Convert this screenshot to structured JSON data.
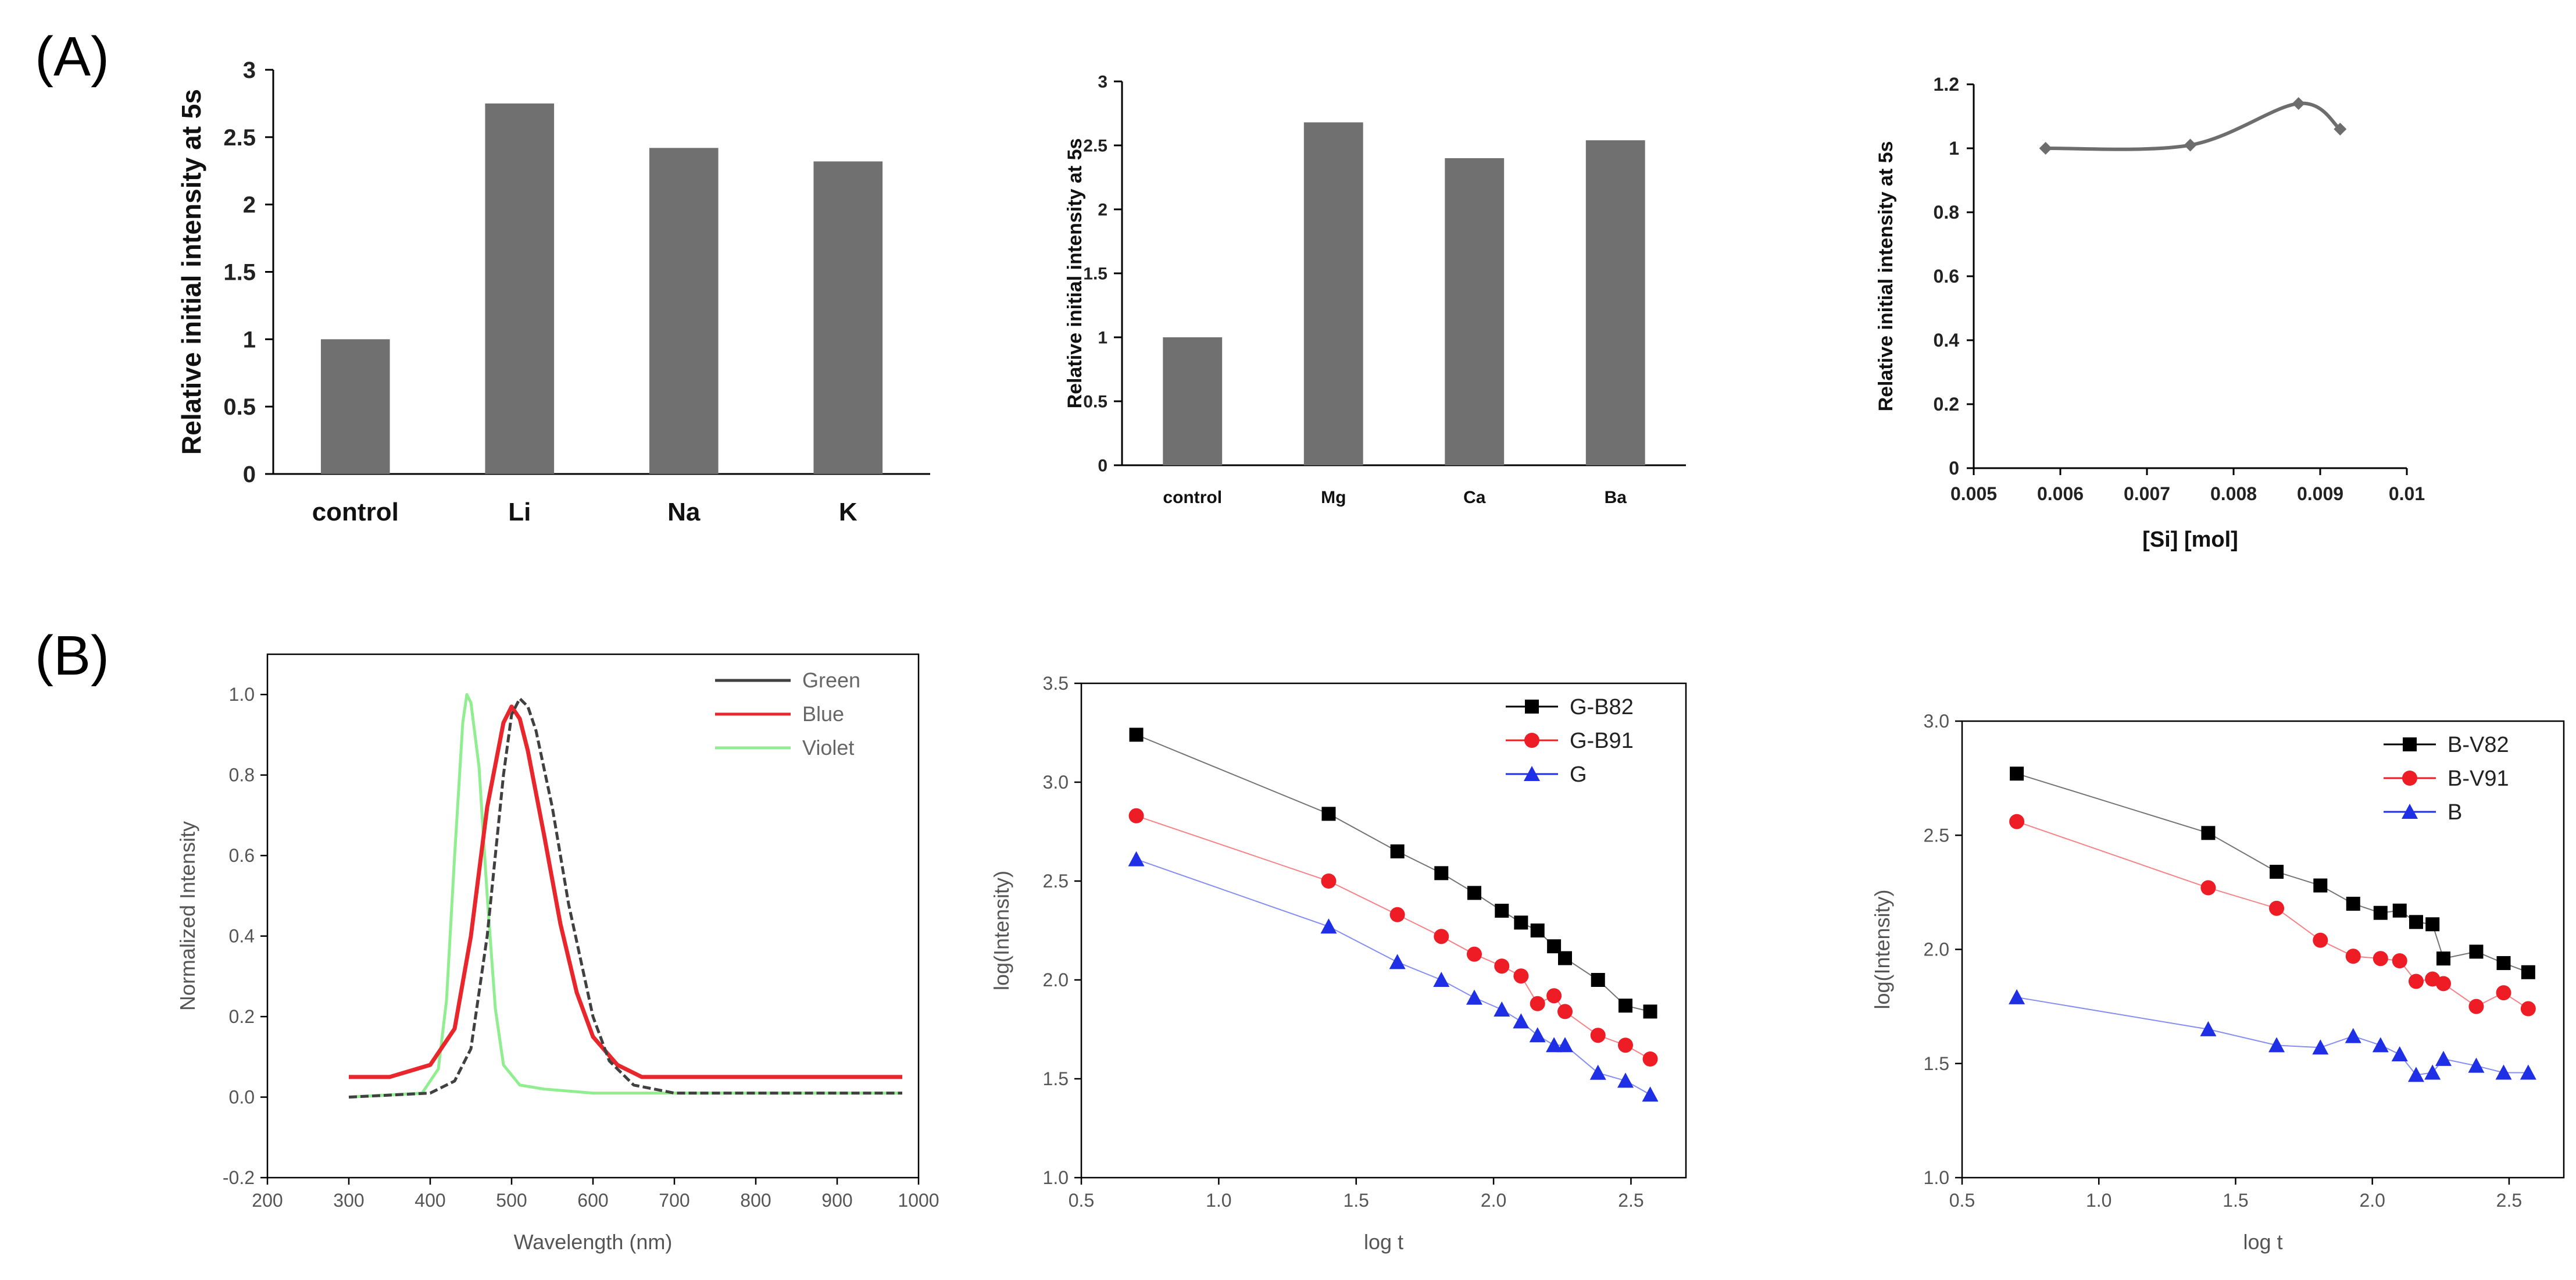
{
  "panel_labels": {
    "a": "(A)",
    "b": "(B)"
  },
  "colors": {
    "bar": "#707070",
    "line": "#6d6d6d",
    "green": "#404040",
    "blue": "#e8262b",
    "violet": "#90ee90",
    "black": "#000000",
    "red": "#ee1c25",
    "blueMark": "#1f2fe6"
  },
  "chart_data": [
    {
      "id": "a1",
      "type": "bar",
      "title": "",
      "xlabel": "",
      "ylabel": "Relative initial intensity at 5s",
      "categories": [
        "control",
        "Li",
        "Na",
        "K"
      ],
      "values": [
        1.0,
        2.75,
        2.42,
        2.32
      ],
      "ylim": [
        0,
        3
      ],
      "yticks": [
        {
          "v": 0,
          "label": "0"
        },
        {
          "v": 0.5,
          "label": "0.5"
        },
        {
          "v": 1,
          "label": "1"
        },
        {
          "v": 1.5,
          "label": "1.5"
        },
        {
          "v": 2,
          "label": "2"
        },
        {
          "v": 2.5,
          "label": "2.5"
        },
        {
          "v": 3,
          "label": "3"
        }
      ]
    },
    {
      "id": "a2",
      "type": "bar",
      "title": "",
      "xlabel": "",
      "ylabel": "Relative initial intensity at 5s",
      "categories": [
        "control",
        "Mg",
        "Ca",
        "Ba"
      ],
      "values": [
        1.0,
        2.68,
        2.4,
        2.54
      ],
      "ylim": [
        0,
        3
      ],
      "yticks": [
        {
          "v": 0,
          "label": "0"
        },
        {
          "v": 0.5,
          "label": "0.5"
        },
        {
          "v": 1,
          "label": "1"
        },
        {
          "v": 1.5,
          "label": "1.5"
        },
        {
          "v": 2,
          "label": "2"
        },
        {
          "v": 2.5,
          "label": "2.5"
        },
        {
          "v": 3,
          "label": "3"
        }
      ]
    },
    {
      "id": "a3",
      "type": "line",
      "title": "",
      "xlabel": "[Si]  [mol]",
      "ylabel": "Relative initial intensity at 5s",
      "x": [
        0.00583,
        0.0075,
        0.00875,
        0.00923
      ],
      "y": [
        1.0,
        1.01,
        1.14,
        1.06
      ],
      "xlim": [
        0.005,
        0.01
      ],
      "ylim": [
        0,
        1.2
      ],
      "xticks": [
        {
          "v": 0.005,
          "label": "0.005"
        },
        {
          "v": 0.006,
          "label": "0.006"
        },
        {
          "v": 0.007,
          "label": "0.007"
        },
        {
          "v": 0.008,
          "label": "0.008"
        },
        {
          "v": 0.009,
          "label": "0.009"
        },
        {
          "v": 0.01,
          "label": "0.01"
        }
      ],
      "yticks": [
        {
          "v": 0,
          "label": "0"
        },
        {
          "v": 0.2,
          "label": "0.2"
        },
        {
          "v": 0.4,
          "label": "0.4"
        },
        {
          "v": 0.6,
          "label": "0.6"
        },
        {
          "v": 0.8,
          "label": "0.8"
        },
        {
          "v": 1,
          "label": "1"
        },
        {
          "v": 1.2,
          "label": "1.2"
        }
      ]
    },
    {
      "id": "b1",
      "type": "line",
      "title": "",
      "xlabel": "Wavelength (nm)",
      "ylabel": "Normalized Intensity",
      "xlim": [
        200,
        1000
      ],
      "ylim": [
        -0.2,
        1.1
      ],
      "xticks": [
        {
          "v": 200,
          "label": "200"
        },
        {
          "v": 300,
          "label": "300"
        },
        {
          "v": 400,
          "label": "400"
        },
        {
          "v": 500,
          "label": "500"
        },
        {
          "v": 600,
          "label": "600"
        },
        {
          "v": 700,
          "label": "700"
        },
        {
          "v": 800,
          "label": "800"
        },
        {
          "v": 900,
          "label": "900"
        },
        {
          "v": 1000,
          "label": "1000"
        }
      ],
      "yticks": [
        {
          "v": -0.2,
          "label": "-0.2"
        },
        {
          "v": 0.0,
          "label": "0.0"
        },
        {
          "v": 0.2,
          "label": "0.2"
        },
        {
          "v": 0.4,
          "label": "0.4"
        },
        {
          "v": 0.6,
          "label": "0.6"
        },
        {
          "v": 0.8,
          "label": "0.8"
        },
        {
          "v": 1.0,
          "label": "1.0"
        }
      ],
      "legend_position": "top-right",
      "series": [
        {
          "name": "Green",
          "color": "#404040",
          "x": [
            300,
            400,
            430,
            450,
            470,
            490,
            500,
            510,
            520,
            530,
            550,
            570,
            600,
            620,
            650,
            700,
            800,
            900,
            980
          ],
          "y": [
            0.0,
            0.01,
            0.04,
            0.12,
            0.4,
            0.8,
            0.95,
            0.99,
            0.97,
            0.91,
            0.72,
            0.48,
            0.2,
            0.09,
            0.03,
            0.01,
            0.01,
            0.01,
            0.01
          ]
        },
        {
          "name": "Blue",
          "color": "#e8262b",
          "x": [
            300,
            350,
            400,
            430,
            450,
            470,
            490,
            500,
            510,
            520,
            540,
            560,
            580,
            600,
            630,
            660,
            700,
            800,
            900,
            980
          ],
          "y": [
            0.05,
            0.05,
            0.08,
            0.17,
            0.4,
            0.72,
            0.93,
            0.97,
            0.94,
            0.86,
            0.65,
            0.43,
            0.26,
            0.15,
            0.08,
            0.05,
            0.05,
            0.05,
            0.05,
            0.05
          ]
        },
        {
          "name": "Violet",
          "color": "#90ee90",
          "x": [
            300,
            390,
            410,
            420,
            430,
            440,
            445,
            450,
            460,
            470,
            480,
            490,
            510,
            540,
            600,
            700,
            800,
            900,
            980
          ],
          "y": [
            0.0,
            0.01,
            0.07,
            0.24,
            0.6,
            0.93,
            1.0,
            0.98,
            0.82,
            0.5,
            0.22,
            0.08,
            0.03,
            0.02,
            0.01,
            0.01,
            0.01,
            0.01,
            0.01
          ]
        }
      ]
    },
    {
      "id": "b2",
      "type": "scatter",
      "title": "",
      "xlabel": "log t",
      "ylabel": "log(Intensity)",
      "xlim": [
        0.5,
        2.7
      ],
      "ylim": [
        1.0,
        3.5
      ],
      "xticks": [
        {
          "v": 0.5,
          "label": "0.5"
        },
        {
          "v": 1.0,
          "label": "1.0"
        },
        {
          "v": 1.5,
          "label": "1.5"
        },
        {
          "v": 2.0,
          "label": "2.0"
        },
        {
          "v": 2.5,
          "label": "2.5"
        }
      ],
      "yticks": [
        {
          "v": 1.0,
          "label": "1.0"
        },
        {
          "v": 1.5,
          "label": "1.5"
        },
        {
          "v": 2.0,
          "label": "2.0"
        },
        {
          "v": 2.5,
          "label": "2.5"
        },
        {
          "v": 3.0,
          "label": "3.0"
        },
        {
          "v": 3.5,
          "label": "3.5"
        }
      ],
      "legend_position": "top-right",
      "x": [
        0.7,
        1.4,
        1.65,
        1.81,
        1.93,
        2.03,
        2.1,
        2.16,
        2.22,
        2.26,
        2.38,
        2.48,
        2.57
      ],
      "series": [
        {
          "name": "G-B82",
          "color": "#000000",
          "marker": "square",
          "y": [
            3.24,
            2.84,
            2.65,
            2.54,
            2.44,
            2.35,
            2.29,
            2.25,
            2.17,
            2.11,
            2.0,
            1.87,
            1.84
          ]
        },
        {
          "name": "G-B91",
          "color": "#ee1c25",
          "marker": "circle",
          "y": [
            2.83,
            2.5,
            2.33,
            2.22,
            2.13,
            2.07,
            2.02,
            1.88,
            1.92,
            1.84,
            1.72,
            1.67,
            1.6
          ]
        },
        {
          "name": "G",
          "color": "#1f2fe6",
          "marker": "triangle",
          "y": [
            2.61,
            2.27,
            2.09,
            2.0,
            1.91,
            1.85,
            1.79,
            1.72,
            1.67,
            1.67,
            1.53,
            1.49,
            1.42
          ]
        }
      ]
    },
    {
      "id": "b3",
      "type": "scatter",
      "title": "",
      "xlabel": "log t",
      "ylabel": "log(Intensity)",
      "xlim": [
        0.5,
        2.7
      ],
      "ylim": [
        1.0,
        3.0
      ],
      "xticks": [
        {
          "v": 0.5,
          "label": "0.5"
        },
        {
          "v": 1.0,
          "label": "1.0"
        },
        {
          "v": 1.5,
          "label": "1.5"
        },
        {
          "v": 2.0,
          "label": "2.0"
        },
        {
          "v": 2.5,
          "label": "2.5"
        }
      ],
      "yticks": [
        {
          "v": 1.0,
          "label": "1.0"
        },
        {
          "v": 1.5,
          "label": "1.5"
        },
        {
          "v": 2.0,
          "label": "2.0"
        },
        {
          "v": 2.5,
          "label": "2.5"
        },
        {
          "v": 3.0,
          "label": "3.0"
        }
      ],
      "legend_position": "top-right",
      "x": [
        0.7,
        1.4,
        1.65,
        1.81,
        1.93,
        2.03,
        2.1,
        2.16,
        2.22,
        2.26,
        2.38,
        2.48,
        2.57
      ],
      "series": [
        {
          "name": "B-V82",
          "color": "#000000",
          "marker": "square",
          "y": [
            2.77,
            2.51,
            2.34,
            2.28,
            2.2,
            2.16,
            2.17,
            2.12,
            2.11,
            1.96,
            1.99,
            1.94,
            1.9
          ]
        },
        {
          "name": "B-V91",
          "color": "#ee1c25",
          "marker": "circle",
          "y": [
            2.56,
            2.27,
            2.18,
            2.04,
            1.97,
            1.96,
            1.95,
            1.86,
            1.87,
            1.85,
            1.75,
            1.81,
            1.74
          ]
        },
        {
          "name": "B",
          "color": "#1f2fe6",
          "marker": "triangle",
          "y": [
            1.79,
            1.65,
            1.58,
            1.57,
            1.62,
            1.58,
            1.54,
            1.45,
            1.46,
            1.52,
            1.49,
            1.46,
            1.46
          ]
        }
      ]
    }
  ]
}
